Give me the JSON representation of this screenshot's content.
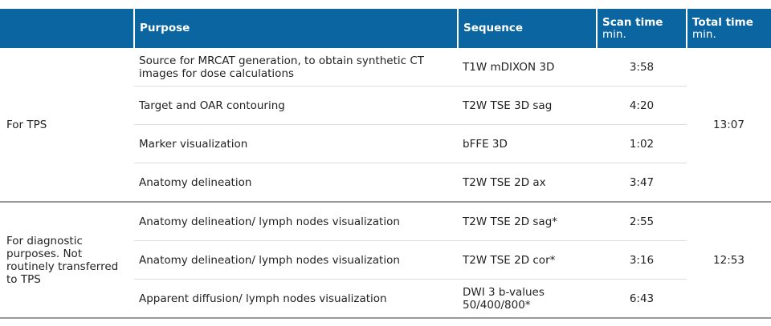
{
  "header": {
    "col1": "",
    "purpose": "Purpose",
    "sequence": "Sequence",
    "scan_time": "Scan time",
    "scan_time_unit": "min.",
    "total_time": "Total time",
    "total_time_unit": "min."
  },
  "groups": [
    {
      "label": "For TPS",
      "total": "13:07",
      "rows": [
        {
          "purpose": "Source for MRCAT generation, to obtain synthetic CT images for dose calculations",
          "sequence": "T1W mDIXON 3D",
          "scan": "3:58"
        },
        {
          "purpose": "Target and OAR contouring",
          "sequence": "T2W TSE 3D sag",
          "scan": "4:20"
        },
        {
          "purpose": "Marker visualization",
          "sequence": "bFFE 3D",
          "scan": "1:02"
        },
        {
          "purpose": "Anatomy delineation",
          "sequence": "T2W TSE 2D ax",
          "scan": "3:47"
        }
      ]
    },
    {
      "label": "For diagnostic purposes. Not routinely transferred to TPS",
      "total": "12:53",
      "rows": [
        {
          "purpose": "Anatomy delineation/ lymph nodes visualization",
          "sequence": "T2W TSE 2D sag*",
          "scan": "2:55"
        },
        {
          "purpose": "Anatomy delineation/ lymph nodes visualization",
          "sequence": "T2W TSE 2D cor*",
          "scan": "3:16"
        },
        {
          "purpose": "Apparent diffusion/ lymph nodes visualization",
          "sequence": "DWI 3 b-values 50/400/800*",
          "scan": "6:43"
        }
      ]
    }
  ],
  "colors": {
    "header_bg": "#0b65a0",
    "header_text": "#ffffff"
  }
}
